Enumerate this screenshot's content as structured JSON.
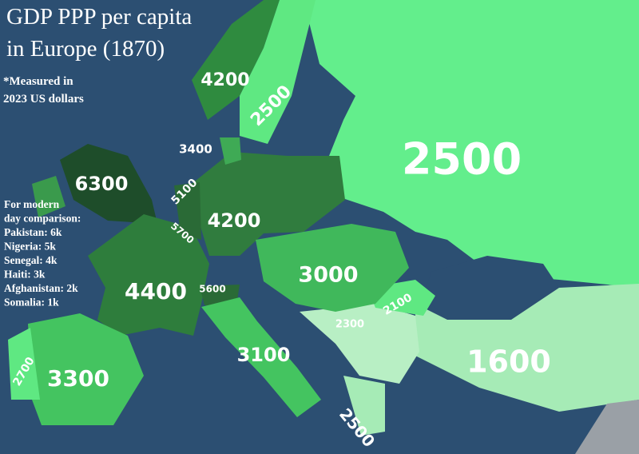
{
  "header": {
    "title": [
      "GDP PPP per capita",
      "in Europe (1870)"
    ],
    "note": [
      "*Measured in",
      "2023 US dollars"
    ]
  },
  "comparison": [
    "For modern",
    "day comparison:",
    "Pakistan: 6k",
    "Nigeria: 5k",
    "Senegal: 4k",
    "Haiti: 3k",
    "Afghanistan: 2k",
    "Somalia: 1k"
  ],
  "regions": [
    4200,
    2500,
    3400,
    6300,
    5100,
    5700,
    4200,
    2500,
    3000,
    2100,
    2300,
    4400,
    5600,
    3100,
    2700,
    3300,
    1600,
    2500
  ]
}
